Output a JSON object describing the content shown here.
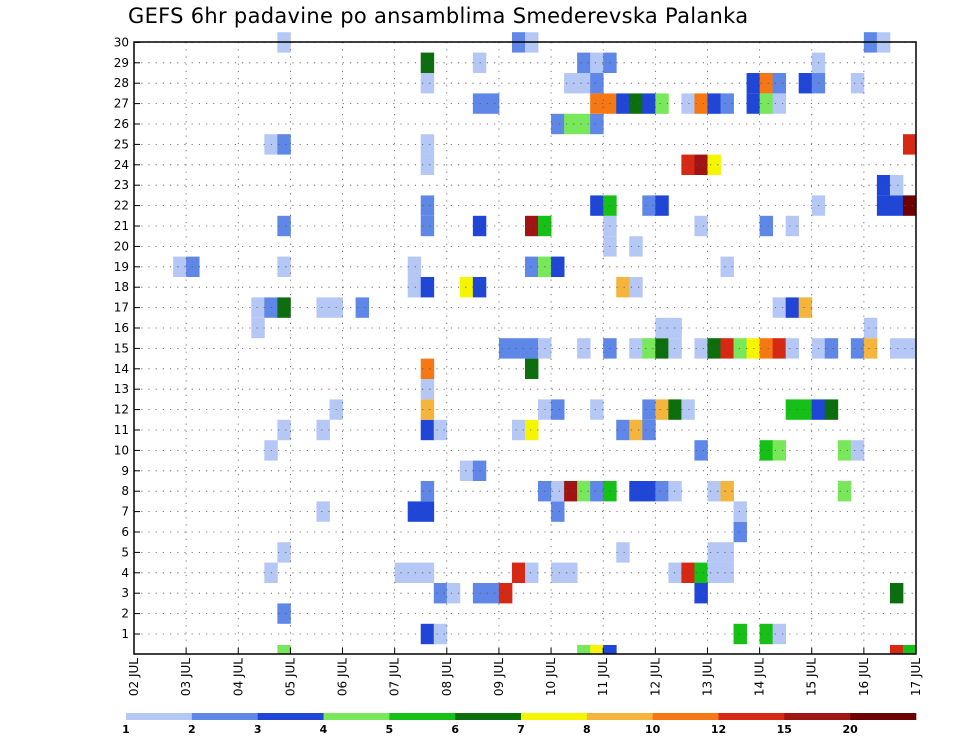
{
  "chart_data": {
    "type": "heatmap",
    "title": "GEFS 6hr padavine po ansamblima Smederevska Palanka",
    "xlabel": "",
    "ylabel": "",
    "x_labels": [
      "02 JUL",
      "03 JUL",
      "04 JUL",
      "05 JUL",
      "06 JUL",
      "07 JUL",
      "08 JUL",
      "09 JUL",
      "10 JUL",
      "11 JUL",
      "12 JUL",
      "13 JUL",
      "14 JUL",
      "15 JUL",
      "16 JUL",
      "17 JUL"
    ],
    "y_labels": [
      "1",
      "2",
      "3",
      "4",
      "5",
      "6",
      "7",
      "8",
      "9",
      "10",
      "11",
      "12",
      "13",
      "14",
      "15",
      "16",
      "17",
      "18",
      "19",
      "20",
      "21",
      "22",
      "23",
      "24",
      "25",
      "26",
      "27",
      "28",
      "29",
      "30"
    ],
    "time_steps": 60,
    "members": 30,
    "grid": true,
    "legend_position": "bottom",
    "legend": {
      "labels": [
        "1",
        "2",
        "3",
        "4",
        "5",
        "6",
        "7",
        "8",
        "10",
        "12",
        "15",
        "20"
      ],
      "colors": [
        "#b5c8f5",
        "#5f87e8",
        "#1f46d6",
        "#78e85a",
        "#16c016",
        "#0c6e0c",
        "#f5f500",
        "#f5b43c",
        "#f57814",
        "#d72814",
        "#a01414",
        "#6e0000"
      ]
    },
    "cells": [
      {
        "member": 1,
        "t": 23,
        "level": 3
      },
      {
        "member": 1,
        "t": 24,
        "level": 1
      },
      {
        "member": 1,
        "t": 47,
        "level": 5
      },
      {
        "member": 1,
        "t": 49,
        "level": 5
      },
      {
        "member": 1,
        "t": 50,
        "level": 1
      },
      {
        "member": 2,
        "t": 12,
        "level": 2
      },
      {
        "member": 3,
        "t": 24,
        "level": 2
      },
      {
        "member": 3,
        "t": 25,
        "level": 1
      },
      {
        "member": 3,
        "t": 27,
        "level": 2
      },
      {
        "member": 3,
        "t": 28,
        "level": 2
      },
      {
        "member": 3,
        "t": 29,
        "level": 10
      },
      {
        "member": 3,
        "t": 44,
        "level": 3
      },
      {
        "member": 3,
        "t": 59,
        "level": 6
      },
      {
        "member": 4,
        "t": 11,
        "level": 1
      },
      {
        "member": 4,
        "t": 21,
        "level": 1
      },
      {
        "member": 4,
        "t": 22,
        "level": 1
      },
      {
        "member": 4,
        "t": 23,
        "level": 1
      },
      {
        "member": 4,
        "t": 30,
        "level": 10
      },
      {
        "member": 4,
        "t": 31,
        "level": 1
      },
      {
        "member": 4,
        "t": 33,
        "level": 1
      },
      {
        "member": 4,
        "t": 34,
        "level": 1
      },
      {
        "member": 4,
        "t": 42,
        "level": 1
      },
      {
        "member": 4,
        "t": 43,
        "level": 10
      },
      {
        "member": 4,
        "t": 44,
        "level": 5
      },
      {
        "member": 4,
        "t": 45,
        "level": 1
      },
      {
        "member": 4,
        "t": 46,
        "level": 1
      },
      {
        "member": 5,
        "t": 12,
        "level": 1
      },
      {
        "member": 5,
        "t": 38,
        "level": 1
      },
      {
        "member": 5,
        "t": 45,
        "level": 1
      },
      {
        "member": 5,
        "t": 46,
        "level": 1
      },
      {
        "member": 6,
        "t": 47,
        "level": 2
      },
      {
        "member": 7,
        "t": 15,
        "level": 1
      },
      {
        "member": 7,
        "t": 22,
        "level": 3
      },
      {
        "member": 7,
        "t": 23,
        "level": 3
      },
      {
        "member": 7,
        "t": 33,
        "level": 2
      },
      {
        "member": 7,
        "t": 47,
        "level": 1
      },
      {
        "member": 8,
        "t": 23,
        "level": 2
      },
      {
        "member": 8,
        "t": 32,
        "level": 2
      },
      {
        "member": 8,
        "t": 33,
        "level": 1
      },
      {
        "member": 8,
        "t": 34,
        "level": 11
      },
      {
        "member": 8,
        "t": 35,
        "level": 4
      },
      {
        "member": 8,
        "t": 36,
        "level": 2
      },
      {
        "member": 8,
        "t": 37,
        "level": 5
      },
      {
        "member": 8,
        "t": 39,
        "level": 3
      },
      {
        "member": 8,
        "t": 40,
        "level": 3
      },
      {
        "member": 8,
        "t": 41,
        "level": 2
      },
      {
        "member": 8,
        "t": 42,
        "level": 1
      },
      {
        "member": 8,
        "t": 45,
        "level": 1
      },
      {
        "member": 8,
        "t": 46,
        "level": 8
      },
      {
        "member": 8,
        "t": 55,
        "level": 4
      },
      {
        "member": 9,
        "t": 26,
        "level": 1
      },
      {
        "member": 9,
        "t": 27,
        "level": 2
      },
      {
        "member": 10,
        "t": 11,
        "level": 1
      },
      {
        "member": 10,
        "t": 44,
        "level": 2
      },
      {
        "member": 10,
        "t": 49,
        "level": 5
      },
      {
        "member": 10,
        "t": 50,
        "level": 4
      },
      {
        "member": 10,
        "t": 55,
        "level": 4
      },
      {
        "member": 10,
        "t": 56,
        "level": 1
      },
      {
        "member": 11,
        "t": 12,
        "level": 1
      },
      {
        "member": 11,
        "t": 15,
        "level": 1
      },
      {
        "member": 11,
        "t": 23,
        "level": 3
      },
      {
        "member": 11,
        "t": 24,
        "level": 1
      },
      {
        "member": 11,
        "t": 30,
        "level": 1
      },
      {
        "member": 11,
        "t": 31,
        "level": 7
      },
      {
        "member": 11,
        "t": 38,
        "level": 2
      },
      {
        "member": 11,
        "t": 39,
        "level": 8
      },
      {
        "member": 11,
        "t": 40,
        "level": 2
      },
      {
        "member": 12,
        "t": 16,
        "level": 1
      },
      {
        "member": 12,
        "t": 23,
        "level": 8
      },
      {
        "member": 12,
        "t": 32,
        "level": 1
      },
      {
        "member": 12,
        "t": 33,
        "level": 2
      },
      {
        "member": 12,
        "t": 36,
        "level": 1
      },
      {
        "member": 12,
        "t": 40,
        "level": 2
      },
      {
        "member": 12,
        "t": 41,
        "level": 8
      },
      {
        "member": 12,
        "t": 42,
        "level": 6
      },
      {
        "member": 12,
        "t": 43,
        "level": 1
      },
      {
        "member": 12,
        "t": 51,
        "level": 5
      },
      {
        "member": 12,
        "t": 52,
        "level": 5
      },
      {
        "member": 12,
        "t": 53,
        "level": 3
      },
      {
        "member": 12,
        "t": 54,
        "level": 6
      },
      {
        "member": 13,
        "t": 23,
        "level": 1
      },
      {
        "member": 14,
        "t": 23,
        "level": 9
      },
      {
        "member": 14,
        "t": 31,
        "level": 6
      },
      {
        "member": 15,
        "t": 29,
        "level": 2
      },
      {
        "member": 15,
        "t": 30,
        "level": 2
      },
      {
        "member": 15,
        "t": 31,
        "level": 2
      },
      {
        "member": 15,
        "t": 32,
        "level": 1
      },
      {
        "member": 15,
        "t": 35,
        "level": 1
      },
      {
        "member": 15,
        "t": 37,
        "level": 2
      },
      {
        "member": 15,
        "t": 39,
        "level": 1
      },
      {
        "member": 15,
        "t": 40,
        "level": 4
      },
      {
        "member": 15,
        "t": 41,
        "level": 6
      },
      {
        "member": 15,
        "t": 42,
        "level": 1
      },
      {
        "member": 15,
        "t": 44,
        "level": 1
      },
      {
        "member": 15,
        "t": 45,
        "level": 6
      },
      {
        "member": 15,
        "t": 46,
        "level": 10
      },
      {
        "member": 15,
        "t": 47,
        "level": 4
      },
      {
        "member": 15,
        "t": 48,
        "level": 7
      },
      {
        "member": 15,
        "t": 49,
        "level": 9
      },
      {
        "member": 15,
        "t": 50,
        "level": 10
      },
      {
        "member": 15,
        "t": 51,
        "level": 1
      },
      {
        "member": 15,
        "t": 53,
        "level": 1
      },
      {
        "member": 15,
        "t": 54,
        "level": 2
      },
      {
        "member": 15,
        "t": 56,
        "level": 2
      },
      {
        "member": 15,
        "t": 57,
        "level": 8
      },
      {
        "member": 15,
        "t": 59,
        "level": 1
      },
      {
        "member": 15,
        "t": 60,
        "level": 1
      },
      {
        "member": 16,
        "t": 10,
        "level": 1
      },
      {
        "member": 16,
        "t": 41,
        "level": 1
      },
      {
        "member": 16,
        "t": 42,
        "level": 1
      },
      {
        "member": 16,
        "t": 57,
        "level": 1
      },
      {
        "member": 17,
        "t": 10,
        "level": 1
      },
      {
        "member": 17,
        "t": 11,
        "level": 2
      },
      {
        "member": 17,
        "t": 12,
        "level": 6
      },
      {
        "member": 17,
        "t": 15,
        "level": 1
      },
      {
        "member": 17,
        "t": 16,
        "level": 1
      },
      {
        "member": 17,
        "t": 18,
        "level": 2
      },
      {
        "member": 17,
        "t": 50,
        "level": 1
      },
      {
        "member": 17,
        "t": 51,
        "level": 3
      },
      {
        "member": 17,
        "t": 52,
        "level": 8
      },
      {
        "member": 18,
        "t": 22,
        "level": 1
      },
      {
        "member": 18,
        "t": 23,
        "level": 3
      },
      {
        "member": 18,
        "t": 26,
        "level": 7
      },
      {
        "member": 18,
        "t": 27,
        "level": 3
      },
      {
        "member": 18,
        "t": 38,
        "level": 8
      },
      {
        "member": 18,
        "t": 39,
        "level": 1
      },
      {
        "member": 19,
        "t": 4,
        "level": 1
      },
      {
        "member": 19,
        "t": 5,
        "level": 2
      },
      {
        "member": 19,
        "t": 12,
        "level": 1
      },
      {
        "member": 19,
        "t": 22,
        "level": 1
      },
      {
        "member": 19,
        "t": 31,
        "level": 2
      },
      {
        "member": 19,
        "t": 32,
        "level": 4
      },
      {
        "member": 19,
        "t": 33,
        "level": 3
      },
      {
        "member": 19,
        "t": 46,
        "level": 1
      },
      {
        "member": 20,
        "t": 37,
        "level": 1
      },
      {
        "member": 20,
        "t": 39,
        "level": 1
      },
      {
        "member": 21,
        "t": 12,
        "level": 2
      },
      {
        "member": 21,
        "t": 23,
        "level": 2
      },
      {
        "member": 21,
        "t": 27,
        "level": 3
      },
      {
        "member": 21,
        "t": 31,
        "level": 11
      },
      {
        "member": 21,
        "t": 32,
        "level": 5
      },
      {
        "member": 21,
        "t": 37,
        "level": 1
      },
      {
        "member": 21,
        "t": 44,
        "level": 1
      },
      {
        "member": 21,
        "t": 49,
        "level": 2
      },
      {
        "member": 21,
        "t": 51,
        "level": 1
      },
      {
        "member": 22,
        "t": 23,
        "level": 2
      },
      {
        "member": 22,
        "t": 36,
        "level": 3
      },
      {
        "member": 22,
        "t": 37,
        "level": 5
      },
      {
        "member": 22,
        "t": 40,
        "level": 2
      },
      {
        "member": 22,
        "t": 41,
        "level": 3
      },
      {
        "member": 22,
        "t": 53,
        "level": 1
      },
      {
        "member": 22,
        "t": 58,
        "level": 3
      },
      {
        "member": 22,
        "t": 59,
        "level": 3
      },
      {
        "member": 22,
        "t": 60,
        "level": 12
      },
      {
        "member": 23,
        "t": 58,
        "level": 3
      },
      {
        "member": 23,
        "t": 59,
        "level": 1
      },
      {
        "member": 24,
        "t": 23,
        "level": 1
      },
      {
        "member": 24,
        "t": 43,
        "level": 10
      },
      {
        "member": 24,
        "t": 44,
        "level": 11
      },
      {
        "member": 24,
        "t": 45,
        "level": 7
      },
      {
        "member": 25,
        "t": 11,
        "level": 1
      },
      {
        "member": 25,
        "t": 12,
        "level": 2
      },
      {
        "member": 25,
        "t": 23,
        "level": 1
      },
      {
        "member": 25,
        "t": 60,
        "level": 10
      },
      {
        "member": 26,
        "t": 33,
        "level": 2
      },
      {
        "member": 26,
        "t": 34,
        "level": 4
      },
      {
        "member": 26,
        "t": 35,
        "level": 4
      },
      {
        "member": 26,
        "t": 36,
        "level": 2
      },
      {
        "member": 27,
        "t": 27,
        "level": 2
      },
      {
        "member": 27,
        "t": 28,
        "level": 2
      },
      {
        "member": 27,
        "t": 36,
        "level": 9
      },
      {
        "member": 27,
        "t": 37,
        "level": 9
      },
      {
        "member": 27,
        "t": 38,
        "level": 3
      },
      {
        "member": 27,
        "t": 39,
        "level": 6
      },
      {
        "member": 27,
        "t": 40,
        "level": 3
      },
      {
        "member": 27,
        "t": 41,
        "level": 4
      },
      {
        "member": 27,
        "t": 43,
        "level": 1
      },
      {
        "member": 27,
        "t": 44,
        "level": 9
      },
      {
        "member": 27,
        "t": 45,
        "level": 3
      },
      {
        "member": 27,
        "t": 46,
        "level": 2
      },
      {
        "member": 27,
        "t": 48,
        "level": 3
      },
      {
        "member": 27,
        "t": 49,
        "level": 4
      },
      {
        "member": 27,
        "t": 50,
        "level": 1
      },
      {
        "member": 28,
        "t": 23,
        "level": 1
      },
      {
        "member": 28,
        "t": 34,
        "level": 1
      },
      {
        "member": 28,
        "t": 35,
        "level": 1
      },
      {
        "member": 28,
        "t": 36,
        "level": 2
      },
      {
        "member": 28,
        "t": 48,
        "level": 3
      },
      {
        "member": 28,
        "t": 49,
        "level": 9
      },
      {
        "member": 28,
        "t": 50,
        "level": 2
      },
      {
        "member": 28,
        "t": 52,
        "level": 3
      },
      {
        "member": 28,
        "t": 53,
        "level": 2
      },
      {
        "member": 28,
        "t": 56,
        "level": 1
      },
      {
        "member": 29,
        "t": 23,
        "level": 6
      },
      {
        "member": 29,
        "t": 27,
        "level": 1
      },
      {
        "member": 29,
        "t": 35,
        "level": 2
      },
      {
        "member": 29,
        "t": 36,
        "level": 1
      },
      {
        "member": 29,
        "t": 37,
        "level": 2
      },
      {
        "member": 29,
        "t": 53,
        "level": 1
      },
      {
        "member": 30,
        "t": 12,
        "level": 1
      },
      {
        "member": 30,
        "t": 30,
        "level": 2
      },
      {
        "member": 30,
        "t": 31,
        "level": 1
      },
      {
        "member": 30,
        "t": 57,
        "level": 2
      },
      {
        "member": 30,
        "t": 58,
        "level": 1
      },
      {
        "member": 0,
        "t": 12,
        "level": 4
      },
      {
        "member": 0,
        "t": 35,
        "level": 4
      },
      {
        "member": 0,
        "t": 36,
        "level": 7
      },
      {
        "member": 0,
        "t": 37,
        "level": 3
      },
      {
        "member": 0,
        "t": 59,
        "level": 10
      },
      {
        "member": 0,
        "t": 60,
        "level": 5
      }
    ]
  }
}
